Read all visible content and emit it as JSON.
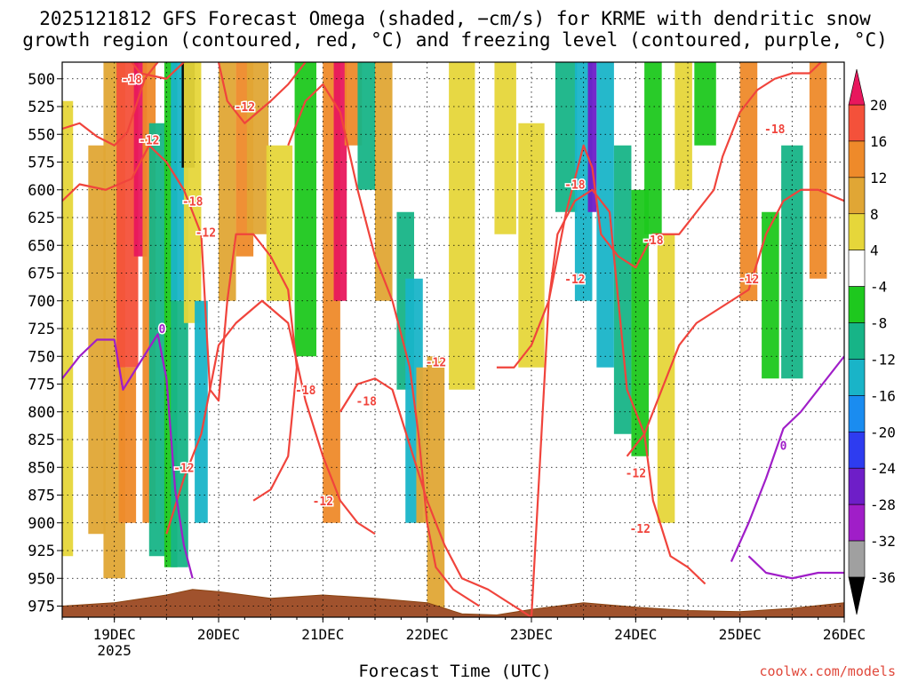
{
  "title_line1": "2025121812 GFS Forecast Omega (shaded, −cm/s) for KRME with dendritic snow",
  "title_line2": "growth region (contoured, red, °C) and freezing level (contoured, purple, °C)",
  "credit": "coolwx.com/models",
  "chart_data": {
    "type": "heatmap",
    "title": "2025121812 GFS Forecast Omega (shaded, −cm/s) for KRME with dendritic snow growth region (contoured, red, °C) and freezing level (contoured, purple, °C)",
    "xlabel": "Forecast Time (UTC)",
    "ylabel": "",
    "x_ticks": [
      "19DEC",
      "20DEC",
      "21DEC",
      "22DEC",
      "23DEC",
      "24DEC",
      "25DEC",
      "26DEC"
    ],
    "x_tick_year": "2025",
    "xlim_hours": [
      -12,
      168
    ],
    "y_ticks": [
      500,
      525,
      550,
      575,
      600,
      625,
      650,
      675,
      700,
      725,
      750,
      775,
      800,
      825,
      850,
      875,
      900,
      925,
      950,
      975
    ],
    "ylim": [
      485,
      985
    ],
    "grid": true,
    "colorbar": {
      "levels": [
        20,
        16,
        12,
        8,
        4,
        -4,
        -8,
        -12,
        -16,
        -20,
        -24,
        -28,
        -32,
        -36
      ],
      "colors": [
        "#e8175d",
        "#f4513a",
        "#ee8a2a",
        "#e0a635",
        "#e6d63a",
        "#ffffff",
        "#1ec81e",
        "#17b487",
        "#19b4c8",
        "#1a8cf0",
        "#2e3cf0",
        "#6e1ec8",
        "#a01ec8",
        "#a0a0a0",
        "#000000"
      ]
    },
    "omega_bands": [
      {
        "t": -12,
        "w": 5,
        "p0": 520,
        "p1": 930,
        "v": 6
      },
      {
        "t": -4,
        "w": 4,
        "p0": 560,
        "p1": 910,
        "v": 10
      },
      {
        "t": 0,
        "w": 5,
        "p0": 485,
        "p1": 950,
        "v": 10
      },
      {
        "t": 3,
        "w": 5,
        "p0": 485,
        "p1": 760,
        "v": 18
      },
      {
        "t": 3,
        "w": 4,
        "p0": 760,
        "p1": 900,
        "v": 12
      },
      {
        "t": 6,
        "w": 3,
        "p0": 485,
        "p1": 660,
        "v": 22
      },
      {
        "t": 8,
        "w": 3,
        "p0": 485,
        "p1": 900,
        "v": 14
      },
      {
        "t": 10,
        "w": 4,
        "p0": 540,
        "p1": 930,
        "v": -10
      },
      {
        "t": 13,
        "w": 3,
        "p0": 485,
        "p1": 940,
        "v": -8
      },
      {
        "t": 15,
        "w": 4,
        "p0": 485,
        "p1": 700,
        "v": -14
      },
      {
        "t": 15,
        "w": 4,
        "p0": 700,
        "p1": 940,
        "v": -12
      },
      {
        "t": 17,
        "w": 3,
        "p0": 485,
        "p1": 580,
        "v": -38
      },
      {
        "t": 18,
        "w": 4,
        "p0": 485,
        "p1": 720,
        "v": 6
      },
      {
        "t": 20,
        "w": 3,
        "p0": 700,
        "p1": 900,
        "v": -14
      },
      {
        "t": 26,
        "w": 4,
        "p0": 485,
        "p1": 700,
        "v": 10
      },
      {
        "t": 30,
        "w": 4,
        "p0": 485,
        "p1": 660,
        "v": 14
      },
      {
        "t": 33,
        "w": 5,
        "p0": 485,
        "p1": 640,
        "v": 10
      },
      {
        "t": 38,
        "w": 6,
        "p0": 560,
        "p1": 700,
        "v": 6
      },
      {
        "t": 44,
        "w": 5,
        "p0": 485,
        "p1": 750,
        "v": -8
      },
      {
        "t": 50,
        "w": 4,
        "p0": 485,
        "p1": 900,
        "v": 14
      },
      {
        "t": 52,
        "w": 3,
        "p0": 485,
        "p1": 700,
        "v": 22
      },
      {
        "t": 55,
        "w": 4,
        "p0": 485,
        "p1": 560,
        "v": 12
      },
      {
        "t": 58,
        "w": 4,
        "p0": 485,
        "p1": 600,
        "v": -10
      },
      {
        "t": 62,
        "w": 4,
        "p0": 485,
        "p1": 700,
        "v": 8
      },
      {
        "t": 67,
        "w": 4,
        "p0": 620,
        "p1": 780,
        "v": -10
      },
      {
        "t": 69,
        "w": 4,
        "p0": 680,
        "p1": 900,
        "v": -14
      },
      {
        "t": 71,
        "w": 3,
        "p0": 760,
        "p1": 900,
        "v": 10
      },
      {
        "t": 74,
        "w": 4,
        "p0": 750,
        "p1": 980,
        "v": 8
      },
      {
        "t": 80,
        "w": 6,
        "p0": 485,
        "p1": 780,
        "v": 6
      },
      {
        "t": 90,
        "w": 5,
        "p0": 485,
        "p1": 640,
        "v": 6
      },
      {
        "t": 96,
        "w": 6,
        "p0": 540,
        "p1": 760,
        "v": 6
      },
      {
        "t": 104,
        "w": 5,
        "p0": 485,
        "p1": 620,
        "v": -10
      },
      {
        "t": 108,
        "w": 4,
        "p0": 485,
        "p1": 700,
        "v": -14
      },
      {
        "t": 110,
        "w": 2,
        "p0": 485,
        "p1": 620,
        "v": -26
      },
      {
        "t": 113,
        "w": 4,
        "p0": 485,
        "p1": 760,
        "v": -14
      },
      {
        "t": 117,
        "w": 4,
        "p0": 560,
        "p1": 820,
        "v": -10
      },
      {
        "t": 121,
        "w": 4,
        "p0": 600,
        "p1": 840,
        "v": -8
      },
      {
        "t": 124,
        "w": 4,
        "p0": 485,
        "p1": 640,
        "v": -8
      },
      {
        "t": 127,
        "w": 4,
        "p0": 640,
        "p1": 900,
        "v": 6
      },
      {
        "t": 131,
        "w": 4,
        "p0": 485,
        "p1": 600,
        "v": 6
      },
      {
        "t": 136,
        "w": 5,
        "p0": 485,
        "p1": 560,
        "v": -8
      },
      {
        "t": 146,
        "w": 4,
        "p0": 485,
        "p1": 700,
        "v": 12
      },
      {
        "t": 151,
        "w": 4,
        "p0": 620,
        "p1": 770,
        "v": -8
      },
      {
        "t": 156,
        "w": 5,
        "p0": 560,
        "p1": 770,
        "v": -10
      },
      {
        "t": 162,
        "w": 4,
        "p0": 485,
        "p1": 680,
        "v": 14
      }
    ],
    "terrain_surface_hpa": [
      [
        -12,
        975
      ],
      [
        0,
        972
      ],
      [
        12,
        965
      ],
      [
        18,
        960
      ],
      [
        24,
        962
      ],
      [
        36,
        968
      ],
      [
        48,
        965
      ],
      [
        60,
        968
      ],
      [
        72,
        972
      ],
      [
        80,
        982
      ],
      [
        88,
        983
      ],
      [
        96,
        978
      ],
      [
        108,
        972
      ],
      [
        120,
        976
      ],
      [
        132,
        979
      ],
      [
        144,
        980
      ],
      [
        156,
        977
      ],
      [
        168,
        972
      ]
    ],
    "contours": [
      {
        "name": "-12",
        "color": "#f0443c",
        "points": [
          [
            -12,
            545
          ],
          [
            -8,
            540
          ],
          [
            -4,
            552
          ],
          [
            0,
            560
          ],
          [
            3,
            548
          ],
          [
            7,
            500
          ],
          [
            10,
            485
          ]
        ]
      },
      {
        "name": "-12",
        "color": "#f0443c",
        "points": [
          [
            -12,
            610
          ],
          [
            -8,
            595
          ],
          [
            -2,
            600
          ],
          [
            4,
            590
          ],
          [
            8,
            560
          ],
          [
            12,
            575
          ],
          [
            16,
            600
          ],
          [
            20,
            640
          ],
          [
            22,
            780
          ],
          [
            24,
            790
          ],
          [
            26,
            700
          ],
          [
            28,
            640
          ],
          [
            32,
            640
          ],
          [
            36,
            660
          ],
          [
            40,
            690
          ],
          [
            42,
            760
          ],
          [
            40,
            840
          ],
          [
            36,
            870
          ],
          [
            32,
            880
          ]
        ]
      },
      {
        "name": "-12",
        "color": "#f0443c",
        "points": [
          [
            12,
            910
          ],
          [
            16,
            860
          ],
          [
            20,
            820
          ],
          [
            24,
            740
          ],
          [
            28,
            720
          ],
          [
            34,
            700
          ],
          [
            40,
            720
          ],
          [
            44,
            790
          ],
          [
            48,
            840
          ],
          [
            52,
            880
          ],
          [
            56,
            900
          ],
          [
            60,
            910
          ]
        ]
      },
      {
        "name": "-12",
        "color": "#f0443c",
        "points": [
          [
            24,
            485
          ],
          [
            26,
            520
          ],
          [
            30,
            540
          ],
          [
            36,
            520
          ],
          [
            40,
            505
          ],
          [
            44,
            485
          ]
        ]
      },
      {
        "name": "-18",
        "color": "#f0443c",
        "points": [
          [
            4,
            485
          ],
          [
            6,
            495
          ],
          [
            12,
            500
          ],
          [
            16,
            485
          ]
        ]
      },
      {
        "name": "-18",
        "color": "#f0443c",
        "points": [
          [
            40,
            560
          ],
          [
            44,
            520
          ],
          [
            48,
            505
          ],
          [
            52,
            530
          ],
          [
            56,
            600
          ],
          [
            60,
            660
          ],
          [
            64,
            700
          ],
          [
            68,
            760
          ],
          [
            70,
            820
          ],
          [
            72,
            900
          ],
          [
            74,
            940
          ],
          [
            78,
            960
          ],
          [
            84,
            975
          ]
        ]
      },
      {
        "name": "-18",
        "color": "#f0443c",
        "points": [
          [
            52,
            800
          ],
          [
            56,
            775
          ],
          [
            60,
            770
          ],
          [
            64,
            780
          ],
          [
            68,
            830
          ],
          [
            72,
            880
          ],
          [
            76,
            920
          ],
          [
            80,
            950
          ],
          [
            86,
            960
          ],
          [
            92,
            975
          ],
          [
            96,
            985
          ]
        ]
      },
      {
        "name": "-12",
        "color": "#f0443c",
        "points": [
          [
            96,
            985
          ],
          [
            100,
            700
          ],
          [
            102,
            640
          ],
          [
            106,
            610
          ],
          [
            110,
            600
          ],
          [
            114,
            620
          ],
          [
            116,
            700
          ],
          [
            118,
            780
          ],
          [
            122,
            820
          ],
          [
            124,
            880
          ],
          [
            128,
            930
          ],
          [
            132,
            940
          ],
          [
            136,
            955
          ]
        ]
      },
      {
        "name": "-18",
        "color": "#f0443c",
        "points": [
          [
            88,
            760
          ],
          [
            92,
            760
          ],
          [
            96,
            740
          ],
          [
            100,
            700
          ],
          [
            104,
            620
          ],
          [
            108,
            560
          ],
          [
            110,
            580
          ],
          [
            112,
            640
          ],
          [
            116,
            660
          ],
          [
            120,
            670
          ],
          [
            124,
            640
          ],
          [
            130,
            640
          ],
          [
            134,
            620
          ],
          [
            138,
            600
          ],
          [
            140,
            570
          ],
          [
            144,
            530
          ],
          [
            148,
            510
          ],
          [
            152,
            500
          ],
          [
            156,
            495
          ],
          [
            160,
            495
          ],
          [
            164,
            480
          ],
          [
            168,
            470
          ]
        ]
      },
      {
        "name": "-12",
        "color": "#f0443c",
        "points": [
          [
            118,
            840
          ],
          [
            122,
            820
          ],
          [
            126,
            780
          ],
          [
            130,
            740
          ],
          [
            134,
            720
          ],
          [
            138,
            710
          ],
          [
            142,
            700
          ],
          [
            146,
            690
          ],
          [
            150,
            640
          ],
          [
            154,
            610
          ],
          [
            158,
            600
          ],
          [
            162,
            600
          ],
          [
            168,
            610
          ]
        ]
      },
      {
        "name": "0",
        "color": "#a01ec8",
        "points": [
          [
            -12,
            770
          ],
          [
            -8,
            750
          ],
          [
            -4,
            735
          ],
          [
            0,
            735
          ],
          [
            2,
            780
          ],
          [
            6,
            755
          ],
          [
            10,
            730
          ],
          [
            12,
            770
          ],
          [
            14,
            870
          ],
          [
            16,
            920
          ],
          [
            18,
            950
          ]
        ]
      },
      {
        "name": "0",
        "color": "#a01ec8",
        "points": [
          [
            142,
            935
          ],
          [
            146,
            900
          ],
          [
            150,
            860
          ],
          [
            154,
            815
          ],
          [
            158,
            800
          ],
          [
            162,
            780
          ],
          [
            166,
            760
          ],
          [
            168,
            750
          ]
        ]
      },
      {
        "name": "0",
        "color": "#a01ec8",
        "points": [
          [
            146,
            930
          ],
          [
            150,
            945
          ],
          [
            156,
            950
          ],
          [
            162,
            945
          ],
          [
            168,
            945
          ]
        ]
      }
    ],
    "contour_labels": [
      {
        "text": "-18",
        "t": 4,
        "p": 500
      },
      {
        "text": "-12",
        "t": 8,
        "p": 555
      },
      {
        "text": "-18",
        "t": 18,
        "p": 610
      },
      {
        "text": "-12",
        "t": 30,
        "p": 525
      },
      {
        "text": "-12",
        "t": 21,
        "p": 638
      },
      {
        "text": "-12",
        "t": 16,
        "p": 850
      },
      {
        "text": "-12",
        "t": 48,
        "p": 880
      },
      {
        "text": "-18",
        "t": 44,
        "p": 780
      },
      {
        "text": "-18",
        "t": 58,
        "p": 790
      },
      {
        "text": "-12",
        "t": 74,
        "p": 755
      },
      {
        "text": "-18",
        "t": 106,
        "p": 595
      },
      {
        "text": "-12",
        "t": 106,
        "p": 680
      },
      {
        "text": "-18",
        "t": 124,
        "p": 645
      },
      {
        "text": "-12",
        "t": 120,
        "p": 855
      },
      {
        "text": "-12",
        "t": 121,
        "p": 905
      },
      {
        "text": "-18",
        "t": 152,
        "p": 545
      },
      {
        "text": "-12",
        "t": 146,
        "p": 680
      },
      {
        "text": "0",
        "t": 11,
        "p": 725
      },
      {
        "text": "0",
        "t": 154,
        "p": 830
      }
    ]
  }
}
